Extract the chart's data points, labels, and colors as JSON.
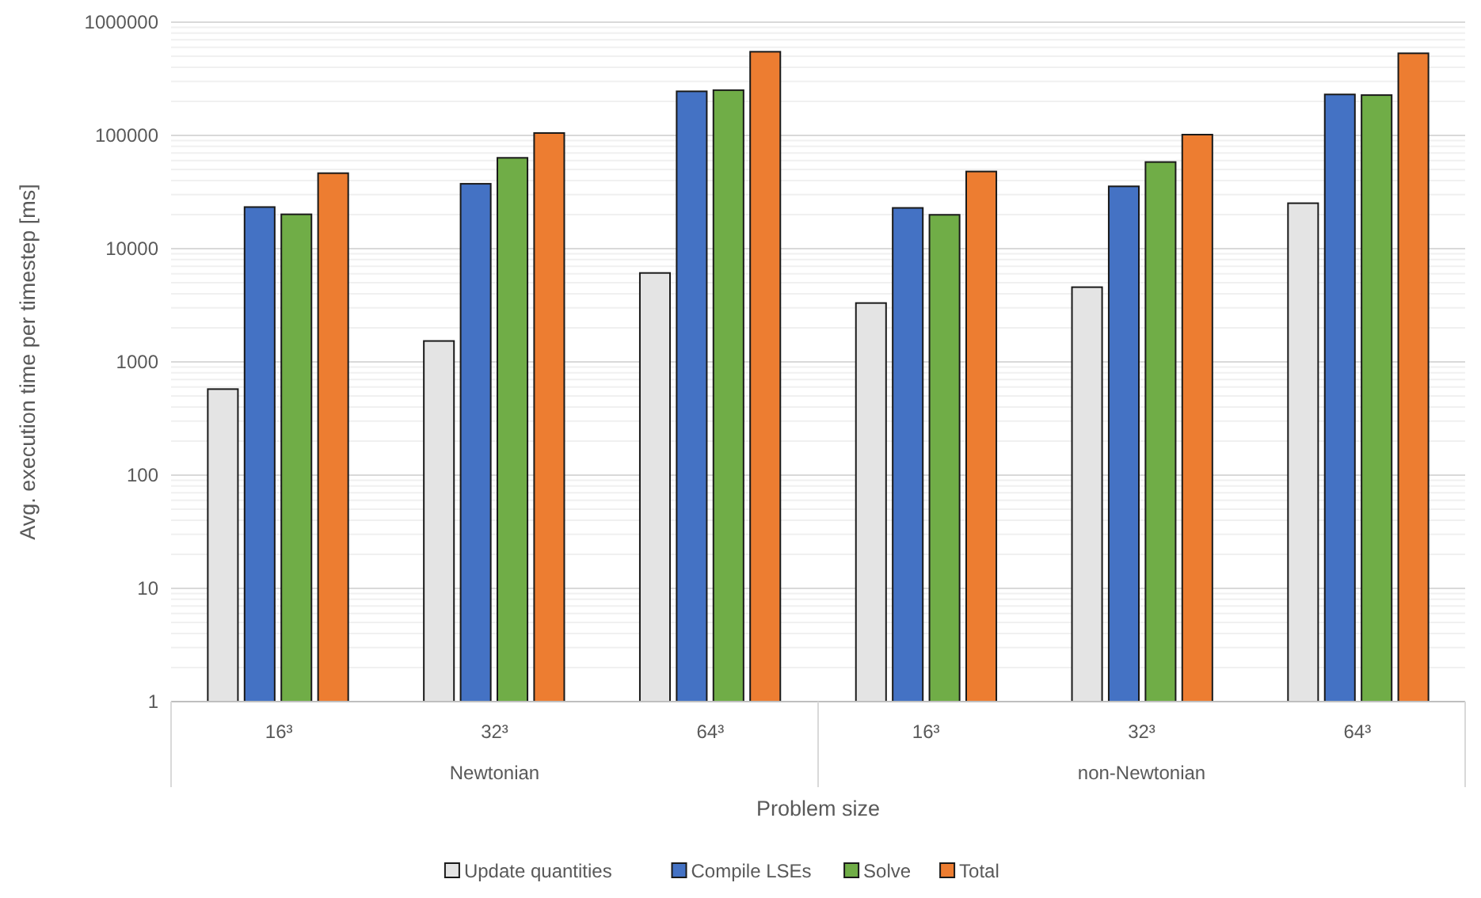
{
  "chart_data": {
    "type": "bar",
    "ylabel": "Avg. execution time per timestep [ms]",
    "xlabel": "Problem size",
    "categories": [
      "16³",
      "32³",
      "64³",
      "16³",
      "32³",
      "64³"
    ],
    "annotations": [
      "Newtonian",
      "non-Newtonian"
    ],
    "series": [
      {
        "name": "Update quantities",
        "color": "#e4e4e4",
        "values": [
          575,
          1530,
          6100,
          3310,
          4570,
          25200
        ]
      },
      {
        "name": "Compile LSEs",
        "color": "#4472c4",
        "values": [
          23300,
          37400,
          245000,
          22900,
          35500,
          230000
        ]
      },
      {
        "name": "Solve",
        "color": "#70ad47",
        "values": [
          20100,
          63400,
          251000,
          19900,
          58200,
          227000
        ]
      },
      {
        "name": "Total",
        "color": "#ed7d31",
        "values": [
          46400,
          105000,
          548000,
          48000,
          101600,
          531000
        ]
      }
    ],
    "log": true,
    "ylim": [
      1,
      1000000
    ],
    "yticks": [
      1,
      10,
      100,
      1000,
      10000,
      100000,
      1000000
    ],
    "grid": true,
    "legend": "bottom"
  }
}
